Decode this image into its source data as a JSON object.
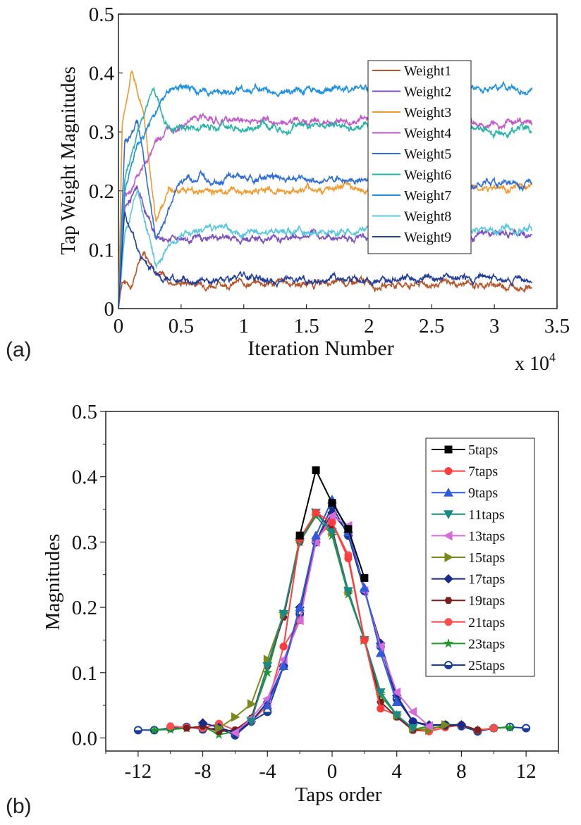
{
  "panel_labels": {
    "a": "(a)",
    "b": "(b)"
  },
  "chart_data": [
    {
      "type": "line",
      "xlabel": "Iteration Number",
      "ylabel": "Tap Weight Magnitudes",
      "x_multiplier_label": "x 10",
      "x_multiplier_exp": "4",
      "xlim": [
        0,
        3.5
      ],
      "ylim": [
        0,
        0.5
      ],
      "xticks": [
        0,
        0.5,
        1,
        1.5,
        2,
        2.5,
        3,
        3.5
      ],
      "xtick_labels": [
        "0",
        "0.5",
        "1",
        "1.5",
        "2",
        "2.5",
        "3",
        "3.5"
      ],
      "yticks": [
        0,
        0.1,
        0.2,
        0.3,
        0.4,
        0.5
      ],
      "ytick_labels": [
        "0",
        "0.1",
        "0.2",
        "0.3",
        "0.4",
        "0.5"
      ],
      "legend_position": "upper-right",
      "grid": false,
      "series": [
        {
          "name": "Weight1",
          "color": "#b5552a",
          "steady": 0.04,
          "x": [
            0,
            0.03,
            0.1,
            0.2,
            0.3,
            0.4,
            3.3
          ],
          "y": [
            0,
            0.05,
            0.04,
            0.1,
            0.07,
            0.045,
            0.04
          ]
        },
        {
          "name": "Weight2",
          "color": "#7b4fc0",
          "steady": 0.12,
          "x": [
            0,
            0.05,
            0.15,
            0.3,
            0.4,
            3.3
          ],
          "y": [
            0,
            0.17,
            0.2,
            0.12,
            0.12,
            0.125
          ]
        },
        {
          "name": "Weight3",
          "color": "#f39a2d",
          "steady": 0.205,
          "x": [
            0,
            0.03,
            0.1,
            0.2,
            0.3,
            0.4,
            3.3
          ],
          "y": [
            0,
            0.31,
            0.4,
            0.35,
            0.15,
            0.2,
            0.205
          ]
        },
        {
          "name": "Weight4",
          "color": "#c05bc8",
          "steady": 0.32,
          "x": [
            0,
            0.05,
            0.2,
            0.3,
            0.5,
            3.3
          ],
          "y": [
            0,
            0.19,
            0.24,
            0.28,
            0.32,
            0.315
          ]
        },
        {
          "name": "Weight5",
          "color": "#2f6ed6",
          "steady": 0.22,
          "x": [
            0,
            0.05,
            0.15,
            0.3,
            0.5,
            3.3
          ],
          "y": [
            0,
            0.28,
            0.32,
            0.12,
            0.22,
            0.215
          ]
        },
        {
          "name": "Weight6",
          "color": "#2ab4a8",
          "steady": 0.305,
          "x": [
            0,
            0.05,
            0.15,
            0.28,
            0.4,
            3.3
          ],
          "y": [
            0,
            0.22,
            0.3,
            0.37,
            0.31,
            0.305
          ]
        },
        {
          "name": "Weight7",
          "color": "#1e90e0",
          "steady": 0.375,
          "x": [
            0,
            0.05,
            0.15,
            0.28,
            0.4,
            3.3
          ],
          "y": [
            0,
            0.2,
            0.28,
            0.33,
            0.37,
            0.375
          ]
        },
        {
          "name": "Weight8",
          "color": "#5ac7e0",
          "steady": 0.135,
          "x": [
            0,
            0.05,
            0.15,
            0.3,
            0.5,
            3.3
          ],
          "y": [
            0,
            0.13,
            0.2,
            0.08,
            0.13,
            0.135
          ]
        },
        {
          "name": "Weight9",
          "color": "#233f9b",
          "steady": 0.05,
          "x": [
            0,
            0.05,
            0.15,
            0.3,
            0.4,
            3.3
          ],
          "y": [
            0,
            0.16,
            0.1,
            0.06,
            0.05,
            0.05
          ]
        }
      ]
    },
    {
      "type": "line",
      "xlabel": "Taps order",
      "ylabel": "Magnitudes",
      "xlim": [
        -14,
        14
      ],
      "ylim": [
        -0.02,
        0.5
      ],
      "xticks": [
        -12,
        -8,
        -4,
        0,
        4,
        8,
        12
      ],
      "xtick_labels": [
        "-12",
        "-8",
        "-4",
        "0",
        "4",
        "8",
        "12"
      ],
      "yticks": [
        0.0,
        0.1,
        0.2,
        0.3,
        0.4,
        0.5
      ],
      "ytick_labels": [
        "0.0",
        "0.1",
        "0.2",
        "0.3",
        "0.4",
        "0.5"
      ],
      "legend_position": "right",
      "grid": false,
      "series": [
        {
          "name": "5taps",
          "color": "#000000",
          "marker": "square",
          "x": [
            -2,
            -1,
            0,
            1,
            2
          ],
          "y": [
            0.31,
            0.41,
            0.36,
            0.32,
            0.245
          ]
        },
        {
          "name": "7taps",
          "color": "#ff3b3b",
          "marker": "circle",
          "x": [
            -3,
            -2,
            -1,
            0,
            1,
            2,
            3
          ],
          "y": [
            0.14,
            0.305,
            0.345,
            0.33,
            0.275,
            0.15,
            0.045
          ]
        },
        {
          "name": "9taps",
          "color": "#2f5bdc",
          "marker": "triangle-up",
          "x": [
            -4,
            -3,
            -2,
            -1,
            0,
            1,
            2,
            3,
            4
          ],
          "y": [
            0.05,
            0.11,
            0.2,
            0.31,
            0.365,
            0.315,
            0.23,
            0.13,
            0.055
          ]
        },
        {
          "name": "11taps",
          "color": "#168a86",
          "marker": "triangle-down",
          "x": [
            -5,
            -4,
            -3,
            -2,
            -1,
            0,
            1,
            2,
            3,
            4,
            5
          ],
          "y": [
            0.025,
            0.11,
            0.19,
            0.3,
            0.345,
            0.315,
            0.225,
            0.15,
            0.07,
            0.035,
            0.015
          ]
        },
        {
          "name": "13taps",
          "color": "#d56ad8",
          "marker": "triangle-left",
          "x": [
            -6,
            -5,
            -4,
            -3,
            -2,
            -1,
            0,
            1,
            2,
            3,
            4,
            5,
            6
          ],
          "y": [
            0.008,
            0.03,
            0.06,
            0.12,
            0.18,
            0.3,
            0.34,
            0.325,
            0.225,
            0.14,
            0.07,
            0.04,
            0.018
          ]
        },
        {
          "name": "15taps",
          "color": "#7a8a1a",
          "marker": "triangle-right",
          "x": [
            -7,
            -6,
            -5,
            -4,
            -3,
            -2,
            -1,
            0,
            1,
            2,
            3,
            4,
            5,
            6,
            7
          ],
          "y": [
            0.015,
            0.032,
            0.052,
            0.12,
            0.19,
            0.305,
            0.345,
            0.315,
            0.225,
            0.15,
            0.07,
            0.035,
            0.015,
            0.012,
            0.02
          ]
        },
        {
          "name": "17taps",
          "color": "#1a2a8c",
          "marker": "diamond",
          "x": [
            -8,
            -7,
            -6,
            -5,
            -4,
            -3,
            -2,
            -1,
            0,
            1,
            2,
            3,
            4,
            5,
            6,
            7,
            8
          ],
          "y": [
            0.023,
            0.016,
            0.008,
            0.025,
            0.055,
            0.11,
            0.2,
            0.3,
            0.345,
            0.315,
            0.225,
            0.145,
            0.065,
            0.025,
            0.02,
            0.02,
            0.02
          ]
        },
        {
          "name": "19taps",
          "color": "#7a1f1f",
          "marker": "hexagon",
          "x": [
            -9,
            -8,
            -7,
            -6,
            -5,
            -4,
            -3,
            -2,
            -1,
            0,
            1,
            2,
            3,
            4,
            5,
            6,
            7,
            8,
            9
          ],
          "y": [
            0.015,
            0.018,
            0.01,
            0.012,
            0.03,
            0.11,
            0.185,
            0.3,
            0.345,
            0.32,
            0.225,
            0.15,
            0.055,
            0.032,
            0.012,
            0.014,
            0.018,
            0.02,
            0.012
          ]
        },
        {
          "name": "21taps",
          "color": "#ff4d4d",
          "marker": "circle",
          "x": [
            -10,
            -9,
            -8,
            -7,
            -6,
            -5,
            -4,
            -3,
            -2,
            -1,
            0,
            1,
            2,
            3,
            4,
            5,
            6,
            7,
            8,
            9,
            10
          ],
          "y": [
            0.018,
            0.016,
            0.015,
            0.022,
            0.012,
            0.025,
            0.05,
            0.14,
            0.18,
            0.305,
            0.33,
            0.28,
            0.15,
            0.045,
            0.035,
            0.012,
            0.01,
            0.016,
            0.02,
            0.012,
            0.015
          ]
        },
        {
          "name": "23taps",
          "color": "#1f9a2a",
          "marker": "star",
          "x": [
            -11,
            -10,
            -9,
            -8,
            -7,
            -6,
            -5,
            -4,
            -3,
            -2,
            -1,
            0,
            1,
            2,
            3,
            4,
            5,
            6,
            7,
            8,
            9,
            10,
            11
          ],
          "y": [
            0.012,
            0.013,
            0.015,
            0.018,
            0.005,
            0.01,
            0.03,
            0.1,
            0.19,
            0.3,
            0.34,
            0.31,
            0.22,
            0.15,
            0.065,
            0.035,
            0.013,
            0.018,
            0.02,
            0.02,
            0.012,
            0.015,
            0.016
          ]
        },
        {
          "name": "25taps",
          "color": "#1a3d9c",
          "marker": "circle-half",
          "x": [
            -12,
            -11,
            -10,
            -9,
            -8,
            -7,
            -6,
            -5,
            -4,
            -3,
            -2,
            -1,
            0,
            1,
            2,
            3,
            4,
            5,
            6,
            7,
            8,
            9,
            10,
            11,
            12
          ],
          "y": [
            0.012,
            0.012,
            0.015,
            0.017,
            0.013,
            0.015,
            0.004,
            0.025,
            0.04,
            0.11,
            0.19,
            0.3,
            0.355,
            0.31,
            0.225,
            0.14,
            0.06,
            0.025,
            0.018,
            0.02,
            0.018,
            0.01,
            0.015,
            0.017,
            0.015
          ]
        }
      ]
    }
  ]
}
